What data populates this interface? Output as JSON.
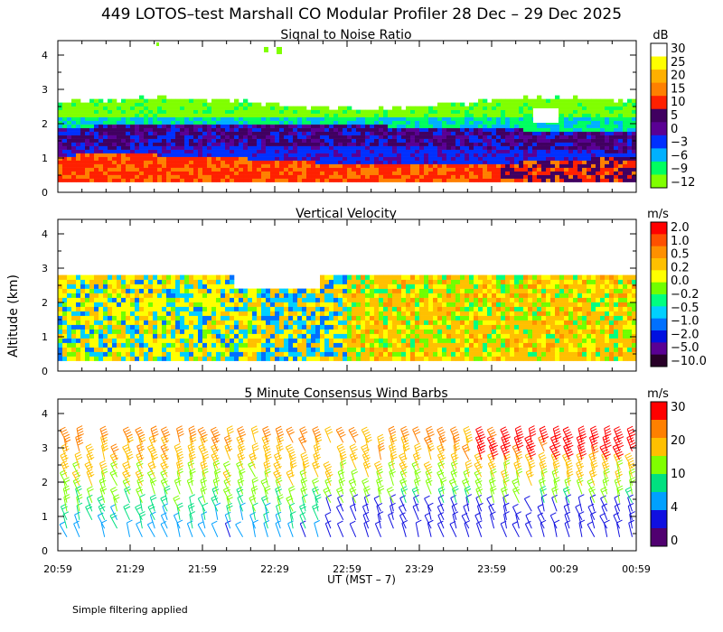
{
  "title": "449 LOTOS–test Marshall CO Modular Profiler 28 Dec – 29 Dec 2025",
  "footnote": "Simple filtering applied",
  "y_axis_label": "Altitude (km)",
  "x_axis_label": "UT  (MST – 7)",
  "time_ticks": [
    "20:59",
    "21:29",
    "21:59",
    "22:29",
    "22:59",
    "23:29",
    "23:59",
    "00:29",
    "00:59"
  ],
  "altitude_ticks": [
    "0",
    "1",
    "2",
    "3",
    "4"
  ],
  "colors": {
    "snr": [
      "#80ff00",
      "#00ff60",
      "#00b0ff",
      "#0030ff",
      "#5a0094",
      "#400060",
      "#ff2000",
      "#ff8000",
      "#ffb000",
      "#ffff00",
      "#ffffff"
    ],
    "velocity": [
      "#280028",
      "#5a0094",
      "#0010e0",
      "#0070ff",
      "#00d0ff",
      "#00ff80",
      "#70ff00",
      "#ffff00",
      "#ffc000",
      "#ff9000",
      "#ff5000",
      "#ff0000"
    ],
    "wind": [
      "#500070",
      "#1010e0",
      "#00a0ff",
      "#00e080",
      "#80ff00",
      "#ffc000",
      "#ff8000",
      "#ff0000"
    ]
  },
  "chart_data": [
    {
      "type": "heatmap",
      "name": "snr",
      "title": "Signal to Noise Ratio",
      "unit": "dB",
      "xlabel": "UT  (MST – 7)",
      "ylabel": "Altitude (km)",
      "ylim": [
        0,
        4.2
      ],
      "data_altitude_range_km": [
        0.3,
        2.7
      ],
      "colorbar_ticks": [
        "30",
        "25",
        "20",
        "15",
        "10",
        "5",
        "0",
        "−3",
        "−6",
        "−9",
        "−12"
      ],
      "colorbar_values": [
        30,
        25,
        20,
        15,
        10,
        5,
        0,
        -3,
        -6,
        -9,
        -12
      ],
      "profile_summary": [
        {
          "altitude_km": 0.5,
          "typical_dB": 12
        },
        {
          "altitude_km": 1.0,
          "typical_dB": 8
        },
        {
          "altitude_km": 1.5,
          "typical_dB": 1
        },
        {
          "altitude_km": 2.0,
          "typical_dB": -4
        },
        {
          "altitude_km": 2.4,
          "typical_dB": -10
        }
      ]
    },
    {
      "type": "heatmap",
      "name": "vertical_velocity",
      "title": "Vertical Velocity",
      "unit": "m/s",
      "xlabel": "UT  (MST – 7)",
      "ylabel": "Altitude (km)",
      "ylim": [
        0,
        4.2
      ],
      "data_altitude_range_km": [
        0.3,
        2.7
      ],
      "colorbar_ticks": [
        "2.0",
        "1.0",
        "0.5",
        "0.2",
        "0.0",
        "−0.2",
        "−0.5",
        "−1.0",
        "−2.0",
        "−5.0",
        "−10.0"
      ],
      "colorbar_values": [
        2.0,
        1.0,
        0.5,
        0.2,
        0.0,
        -0.2,
        -0.5,
        -1.0,
        -2.0,
        -5.0,
        -10.0
      ]
    },
    {
      "type": "scatter",
      "name": "wind_barbs",
      "title": "5 Minute Consensus Wind Barbs",
      "unit": "m/s",
      "xlabel": "UT  (MST – 7)",
      "ylabel": "Altitude (km)",
      "ylim": [
        0,
        4.2
      ],
      "colorbar_ticks": [
        "30",
        "20",
        "10",
        "4",
        "0"
      ],
      "colorbar_values": [
        30,
        20,
        10,
        4,
        0
      ],
      "profile_summary": [
        {
          "altitude_km": 0.5,
          "typical_speed_ms": 6
        },
        {
          "altitude_km": 1.0,
          "typical_speed_ms": 8
        },
        {
          "altitude_km": 1.5,
          "typical_speed_ms": 10
        },
        {
          "altitude_km": 2.0,
          "typical_speed_ms": 12
        },
        {
          "altitude_km": 2.5,
          "typical_speed_ms": 15
        },
        {
          "altitude_km": 3.0,
          "typical_speed_ms": 20
        }
      ]
    }
  ]
}
